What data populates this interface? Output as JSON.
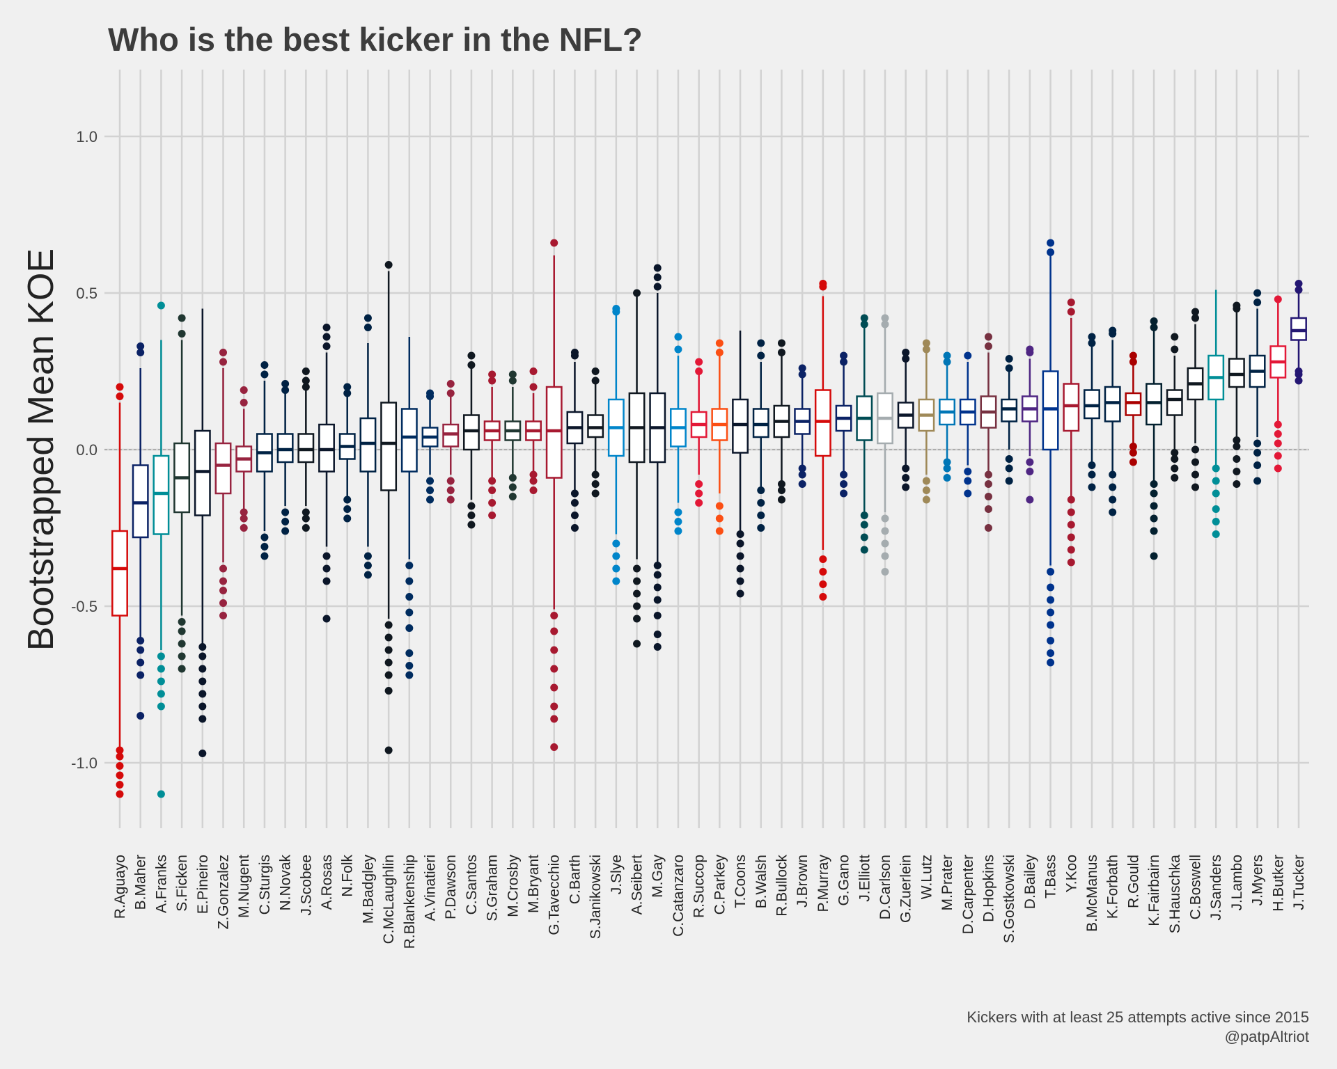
{
  "chart_data": {
    "type": "box",
    "title": "Who is the best kicker in the NFL?",
    "xlabel": "",
    "ylabel": "Bootstrapped Mean KOE",
    "ylim": [
      -1.2,
      1.2
    ],
    "yticks": [
      -1.0,
      -0.5,
      0.0,
      0.5,
      1.0
    ],
    "ytick_labels": [
      "-1.0",
      "-0.5",
      "0.0",
      "0.5",
      "1.0"
    ],
    "reference_line": 0,
    "grid": true,
    "legend": "none",
    "caption_lines": [
      "Kickers with at least 25 attempts active since 2015",
      "@patpAltriot"
    ],
    "kickers": [
      {
        "name": "R.Aguayo",
        "color": "#d50a0a",
        "q1": -0.53,
        "median": -0.38,
        "q3": -0.26,
        "wlo": -0.95,
        "whi": 0.15,
        "out": [
          -1.1,
          -1.07,
          -1.04,
          -1.01,
          -0.98,
          -0.96,
          0.17,
          0.2
        ]
      },
      {
        "name": "B.Maher",
        "color": "#0b2265",
        "q1": -0.28,
        "median": -0.17,
        "q3": -0.05,
        "wlo": -0.6,
        "whi": 0.26,
        "out": [
          -0.85,
          -0.72,
          -0.68,
          -0.64,
          -0.61,
          0.31,
          0.33
        ]
      },
      {
        "name": "A.Franks",
        "color": "#008e97",
        "q1": -0.27,
        "median": -0.14,
        "q3": -0.02,
        "wlo": -0.64,
        "whi": 0.35,
        "out": [
          -1.1,
          -0.82,
          -0.78,
          -0.74,
          -0.7,
          -0.66,
          0.46
        ]
      },
      {
        "name": "S.Ficken",
        "color": "#203731",
        "q1": -0.2,
        "median": -0.09,
        "q3": 0.02,
        "wlo": -0.53,
        "whi": 0.35,
        "out": [
          -0.7,
          -0.66,
          -0.62,
          -0.58,
          -0.55,
          0.37,
          0.42
        ]
      },
      {
        "name": "E.Pineiro",
        "color": "#0b162a",
        "q1": -0.21,
        "median": -0.07,
        "q3": 0.06,
        "wlo": -0.62,
        "whi": 0.45,
        "out": [
          -0.97,
          -0.86,
          -0.82,
          -0.78,
          -0.74,
          -0.7,
          -0.66,
          -0.63
        ]
      },
      {
        "name": "Z.Gonzalez",
        "color": "#97233f",
        "q1": -0.14,
        "median": -0.05,
        "q3": 0.02,
        "wlo": -0.36,
        "whi": 0.26,
        "out": [
          -0.53,
          -0.49,
          -0.45,
          -0.42,
          -0.38,
          0.28,
          0.31
        ]
      },
      {
        "name": "M.Nugent",
        "color": "#97233f",
        "q1": -0.07,
        "median": -0.03,
        "q3": 0.01,
        "wlo": -0.19,
        "whi": 0.13,
        "out": [
          -0.25,
          -0.22,
          -0.2,
          0.15,
          0.19
        ]
      },
      {
        "name": "C.Sturgis",
        "color": "#002244",
        "q1": -0.07,
        "median": -0.01,
        "q3": 0.05,
        "wlo": -0.26,
        "whi": 0.22,
        "out": [
          -0.34,
          -0.31,
          -0.28,
          0.24,
          0.27
        ]
      },
      {
        "name": "N.Novak",
        "color": "#002244",
        "q1": -0.04,
        "median": 0.0,
        "q3": 0.05,
        "wlo": -0.18,
        "whi": 0.18,
        "out": [
          -0.26,
          -0.23,
          -0.2,
          0.19,
          0.21
        ]
      },
      {
        "name": "J.Scobee",
        "color": "#101820",
        "q1": -0.04,
        "median": 0.0,
        "q3": 0.05,
        "wlo": -0.18,
        "whi": 0.19,
        "out": [
          -0.25,
          -0.22,
          -0.2,
          0.2,
          0.22,
          0.25
        ]
      },
      {
        "name": "A.Rosas",
        "color": "#0b162a",
        "q1": -0.07,
        "median": 0.0,
        "q3": 0.08,
        "wlo": -0.31,
        "whi": 0.31,
        "out": [
          -0.54,
          -0.42,
          -0.38,
          -0.34,
          0.33,
          0.36,
          0.39
        ]
      },
      {
        "name": "N.Folk",
        "color": "#002244",
        "q1": -0.03,
        "median": 0.01,
        "q3": 0.05,
        "wlo": -0.15,
        "whi": 0.17,
        "out": [
          -0.22,
          -0.19,
          -0.16,
          0.18,
          0.2
        ]
      },
      {
        "name": "M.Badgley",
        "color": "#002244",
        "q1": -0.07,
        "median": 0.02,
        "q3": 0.1,
        "wlo": -0.31,
        "whi": 0.34,
        "out": [
          -0.4,
          -0.37,
          -0.34,
          0.39,
          0.42
        ]
      },
      {
        "name": "C.McLaughlin",
        "color": "#101820",
        "q1": -0.13,
        "median": 0.02,
        "q3": 0.15,
        "wlo": -0.54,
        "whi": 0.57,
        "out": [
          -0.96,
          -0.77,
          -0.72,
          -0.68,
          -0.64,
          -0.6,
          -0.56,
          0.59
        ]
      },
      {
        "name": "R.Blankenship",
        "color": "#002c5f",
        "q1": -0.07,
        "median": 0.04,
        "q3": 0.13,
        "wlo": -0.35,
        "whi": 0.36,
        "out": [
          -0.72,
          -0.69,
          -0.65,
          -0.57,
          -0.52,
          -0.47,
          -0.42,
          -0.37
        ]
      },
      {
        "name": "A.Vinatieri",
        "color": "#002c5f",
        "q1": 0.01,
        "median": 0.04,
        "q3": 0.07,
        "wlo": -0.08,
        "whi": 0.16,
        "out": [
          -0.16,
          -0.13,
          -0.1,
          0.17,
          0.18
        ]
      },
      {
        "name": "P.Dawson",
        "color": "#97233f",
        "q1": 0.01,
        "median": 0.05,
        "q3": 0.08,
        "wlo": -0.08,
        "whi": 0.17,
        "out": [
          -0.16,
          -0.13,
          -0.1,
          0.18,
          0.21
        ]
      },
      {
        "name": "C.Santos",
        "color": "#101820",
        "q1": 0.0,
        "median": 0.06,
        "q3": 0.11,
        "wlo": -0.16,
        "whi": 0.26,
        "out": [
          -0.24,
          -0.21,
          -0.18,
          0.27,
          0.3
        ]
      },
      {
        "name": "S.Graham",
        "color": "#a71930",
        "q1": 0.03,
        "median": 0.06,
        "q3": 0.09,
        "wlo": -0.09,
        "whi": 0.2,
        "out": [
          -0.21,
          -0.17,
          -0.13,
          -0.1,
          0.22,
          0.24
        ]
      },
      {
        "name": "M.Crosby",
        "color": "#203731",
        "q1": 0.03,
        "median": 0.06,
        "q3": 0.09,
        "wlo": -0.08,
        "whi": 0.2,
        "out": [
          -0.15,
          -0.12,
          -0.09,
          0.22,
          0.24
        ]
      },
      {
        "name": "M.Bryant",
        "color": "#a71930",
        "q1": 0.03,
        "median": 0.06,
        "q3": 0.09,
        "wlo": -0.07,
        "whi": 0.18,
        "out": [
          -0.13,
          -0.1,
          -0.08,
          0.2,
          0.25
        ]
      },
      {
        "name": "G.Tavecchio",
        "color": "#a71930",
        "q1": -0.09,
        "median": 0.06,
        "q3": 0.2,
        "wlo": -0.51,
        "whi": 0.62,
        "out": [
          -0.95,
          -0.86,
          -0.82,
          -0.76,
          -0.7,
          -0.64,
          -0.58,
          -0.53,
          0.66
        ]
      },
      {
        "name": "C.Barth",
        "color": "#0b162a",
        "q1": 0.02,
        "median": 0.07,
        "q3": 0.12,
        "wlo": -0.13,
        "whi": 0.28,
        "out": [
          -0.25,
          -0.21,
          -0.17,
          -0.14,
          0.3,
          0.31
        ]
      },
      {
        "name": "S.Janikowski",
        "color": "#101820",
        "q1": 0.04,
        "median": 0.07,
        "q3": 0.11,
        "wlo": -0.07,
        "whi": 0.21,
        "out": [
          -0.14,
          -0.11,
          -0.08,
          0.22,
          0.25
        ]
      },
      {
        "name": "J.Slye",
        "color": "#0085ca",
        "q1": -0.02,
        "median": 0.07,
        "q3": 0.16,
        "wlo": -0.27,
        "whi": 0.43,
        "out": [
          -0.42,
          -0.38,
          -0.34,
          -0.3,
          0.44,
          0.45
        ]
      },
      {
        "name": "A.Seibert",
        "color": "#101820",
        "q1": -0.04,
        "median": 0.07,
        "q3": 0.18,
        "wlo": -0.35,
        "whi": 0.49,
        "out": [
          -0.62,
          -0.54,
          -0.5,
          -0.46,
          -0.42,
          -0.38,
          0.5
        ]
      },
      {
        "name": "M.Gay",
        "color": "#0a162a",
        "q1": -0.04,
        "median": 0.07,
        "q3": 0.18,
        "wlo": -0.36,
        "whi": 0.5,
        "out": [
          -0.63,
          -0.59,
          -0.53,
          -0.48,
          -0.44,
          -0.4,
          -0.37,
          0.52,
          0.55,
          0.58
        ]
      },
      {
        "name": "C.Catanzaro",
        "color": "#0085ca",
        "q1": 0.01,
        "median": 0.07,
        "q3": 0.13,
        "wlo": -0.17,
        "whi": 0.3,
        "out": [
          -0.26,
          -0.23,
          -0.2,
          0.32,
          0.36
        ]
      },
      {
        "name": "R.Succop",
        "color": "#e31837",
        "q1": 0.04,
        "median": 0.08,
        "q3": 0.12,
        "wlo": -0.08,
        "whi": 0.24,
        "out": [
          -0.17,
          -0.14,
          -0.11,
          0.25,
          0.28
        ]
      },
      {
        "name": "C.Parkey",
        "color": "#fb4f14",
        "q1": 0.03,
        "median": 0.08,
        "q3": 0.13,
        "wlo": -0.14,
        "whi": 0.3,
        "out": [
          -0.26,
          -0.22,
          -0.18,
          0.31,
          0.34
        ]
      },
      {
        "name": "T.Coons",
        "color": "#0b162a",
        "q1": -0.01,
        "median": 0.08,
        "q3": 0.16,
        "wlo": -0.26,
        "whi": 0.38,
        "out": [
          -0.46,
          -0.42,
          -0.38,
          -0.34,
          -0.3,
          -0.27
        ]
      },
      {
        "name": "B.Walsh",
        "color": "#002244",
        "q1": 0.04,
        "median": 0.08,
        "q3": 0.13,
        "wlo": -0.12,
        "whi": 0.28,
        "out": [
          -0.25,
          -0.21,
          -0.17,
          -0.13,
          0.3,
          0.34
        ]
      },
      {
        "name": "R.Bullock",
        "color": "#101820",
        "q1": 0.04,
        "median": 0.09,
        "q3": 0.14,
        "wlo": -0.1,
        "whi": 0.3,
        "out": [
          -0.16,
          -0.13,
          -0.11,
          0.31,
          0.34
        ]
      },
      {
        "name": "J.Brown",
        "color": "#0b2265",
        "q1": 0.05,
        "median": 0.09,
        "q3": 0.13,
        "wlo": -0.05,
        "whi": 0.23,
        "out": [
          -0.11,
          -0.08,
          -0.06,
          0.24,
          0.26
        ]
      },
      {
        "name": "P.Murray",
        "color": "#d50a0a",
        "q1": -0.02,
        "median": 0.09,
        "q3": 0.19,
        "wlo": -0.32,
        "whi": 0.49,
        "out": [
          -0.47,
          -0.43,
          -0.39,
          -0.35,
          0.52,
          0.53
        ]
      },
      {
        "name": "G.Gano",
        "color": "#0b2265",
        "q1": 0.06,
        "median": 0.1,
        "q3": 0.14,
        "wlo": -0.07,
        "whi": 0.27,
        "out": [
          -0.14,
          -0.11,
          -0.08,
          0.28,
          0.3
        ]
      },
      {
        "name": "J.Elliott",
        "color": "#004c54",
        "q1": 0.03,
        "median": 0.1,
        "q3": 0.17,
        "wlo": -0.2,
        "whi": 0.39,
        "out": [
          -0.32,
          -0.28,
          -0.24,
          -0.21,
          0.4,
          0.42
        ]
      },
      {
        "name": "D.Carlson",
        "color": "#a5acaf",
        "q1": 0.02,
        "median": 0.1,
        "q3": 0.18,
        "wlo": -0.2,
        "whi": 0.39,
        "out": [
          -0.39,
          -0.34,
          -0.3,
          -0.26,
          -0.22,
          0.4,
          0.42
        ]
      },
      {
        "name": "G.Zuerlein",
        "color": "#0b162a",
        "q1": 0.07,
        "median": 0.11,
        "q3": 0.15,
        "wlo": -0.05,
        "whi": 0.28,
        "out": [
          -0.12,
          -0.09,
          -0.06,
          0.29,
          0.31
        ]
      },
      {
        "name": "W.Lutz",
        "color": "#9f8958",
        "q1": 0.06,
        "median": 0.11,
        "q3": 0.16,
        "wlo": -0.08,
        "whi": 0.31,
        "out": [
          -0.16,
          -0.13,
          -0.1,
          0.32,
          0.34
        ]
      },
      {
        "name": "M.Prater",
        "color": "#0076b6",
        "q1": 0.08,
        "median": 0.12,
        "q3": 0.16,
        "wlo": -0.03,
        "whi": 0.27,
        "out": [
          -0.09,
          -0.06,
          -0.04,
          0.28,
          0.3
        ]
      },
      {
        "name": "D.Carpenter",
        "color": "#00338d",
        "q1": 0.08,
        "median": 0.12,
        "q3": 0.16,
        "wlo": -0.05,
        "whi": 0.28,
        "out": [
          -0.14,
          -0.1,
          -0.07,
          0.3
        ]
      },
      {
        "name": "D.Hopkins",
        "color": "#773141",
        "q1": 0.07,
        "median": 0.12,
        "q3": 0.17,
        "wlo": -0.07,
        "whi": 0.31,
        "out": [
          -0.25,
          -0.19,
          -0.15,
          -0.11,
          -0.08,
          0.33,
          0.36
        ]
      },
      {
        "name": "S.Gostkowski",
        "color": "#002244",
        "q1": 0.09,
        "median": 0.13,
        "q3": 0.16,
        "wlo": 0.0,
        "whi": 0.25,
        "out": [
          -0.1,
          -0.06,
          -0.03,
          0.26,
          0.29
        ]
      },
      {
        "name": "D.Bailey",
        "color": "#4f2683",
        "q1": 0.09,
        "median": 0.13,
        "q3": 0.17,
        "wlo": -0.02,
        "whi": 0.29,
        "out": [
          -0.16,
          -0.07,
          -0.04,
          0.31,
          0.32
        ]
      },
      {
        "name": "T.Bass",
        "color": "#00338d",
        "q1": 0.0,
        "median": 0.13,
        "q3": 0.25,
        "wlo": -0.37,
        "whi": 0.62,
        "out": [
          -0.68,
          -0.65,
          -0.61,
          -0.56,
          -0.52,
          -0.48,
          -0.44,
          -0.39,
          0.63,
          0.66
        ]
      },
      {
        "name": "Y.Koo",
        "color": "#a71930",
        "q1": 0.06,
        "median": 0.14,
        "q3": 0.21,
        "wlo": -0.15,
        "whi": 0.42,
        "out": [
          -0.36,
          -0.32,
          -0.28,
          -0.24,
          -0.2,
          -0.16,
          0.44,
          0.47
        ]
      },
      {
        "name": "B.McManus",
        "color": "#002244",
        "q1": 0.1,
        "median": 0.14,
        "q3": 0.19,
        "wlo": -0.04,
        "whi": 0.33,
        "out": [
          -0.12,
          -0.08,
          -0.05,
          0.34,
          0.36
        ]
      },
      {
        "name": "K.Forbath",
        "color": "#002244",
        "q1": 0.09,
        "median": 0.15,
        "q3": 0.2,
        "wlo": -0.07,
        "whi": 0.35,
        "out": [
          -0.2,
          -0.16,
          -0.12,
          -0.08,
          0.37,
          0.38
        ]
      },
      {
        "name": "R.Gould",
        "color": "#aa0000",
        "q1": 0.11,
        "median": 0.15,
        "q3": 0.18,
        "wlo": 0.02,
        "whi": 0.27,
        "out": [
          -0.04,
          -0.01,
          0.01,
          0.28,
          0.3
        ]
      },
      {
        "name": "K.Fairbairn",
        "color": "#03202f",
        "q1": 0.08,
        "median": 0.15,
        "q3": 0.21,
        "wlo": -0.1,
        "whi": 0.38,
        "out": [
          -0.34,
          -0.26,
          -0.22,
          -0.18,
          -0.14,
          -0.11,
          0.39,
          0.41
        ]
      },
      {
        "name": "S.Hauschka",
        "color": "#101820",
        "q1": 0.11,
        "median": 0.16,
        "q3": 0.19,
        "wlo": 0.0,
        "whi": 0.3,
        "out": [
          -0.09,
          -0.06,
          -0.03,
          -0.01,
          0.32,
          0.36
        ]
      },
      {
        "name": "C.Boswell",
        "color": "#101820",
        "q1": 0.16,
        "median": 0.21,
        "q3": 0.26,
        "wlo": 0.02,
        "whi": 0.4,
        "out": [
          -0.12,
          -0.08,
          -0.04,
          0.0,
          0.42,
          0.44
        ]
      },
      {
        "name": "J.Sanders",
        "color": "#008e97",
        "q1": 0.16,
        "median": 0.23,
        "q3": 0.3,
        "wlo": -0.05,
        "whi": 0.51,
        "out": [
          -0.27,
          -0.23,
          -0.19,
          -0.14,
          -0.1,
          -0.06
        ]
      },
      {
        "name": "J.Lambo",
        "color": "#101820",
        "q1": 0.2,
        "median": 0.24,
        "q3": 0.29,
        "wlo": 0.04,
        "whi": 0.44,
        "out": [
          -0.11,
          -0.07,
          -0.03,
          0.01,
          0.03,
          0.45,
          0.46
        ]
      },
      {
        "name": "J.Myers",
        "color": "#002244",
        "q1": 0.2,
        "median": 0.25,
        "q3": 0.3,
        "wlo": 0.04,
        "whi": 0.45,
        "out": [
          -0.1,
          -0.05,
          -0.01,
          0.02,
          0.47,
          0.5
        ]
      },
      {
        "name": "H.Butker",
        "color": "#e31837",
        "q1": 0.23,
        "median": 0.28,
        "q3": 0.33,
        "wlo": 0.09,
        "whi": 0.47,
        "out": [
          -0.06,
          -0.02,
          0.02,
          0.05,
          0.08,
          0.48
        ]
      },
      {
        "name": "J.Tucker",
        "color": "#241773",
        "q1": 0.35,
        "median": 0.38,
        "q3": 0.42,
        "wlo": 0.26,
        "whi": 0.5,
        "out": [
          0.22,
          0.24,
          0.25,
          0.51,
          0.53
        ]
      }
    ]
  }
}
